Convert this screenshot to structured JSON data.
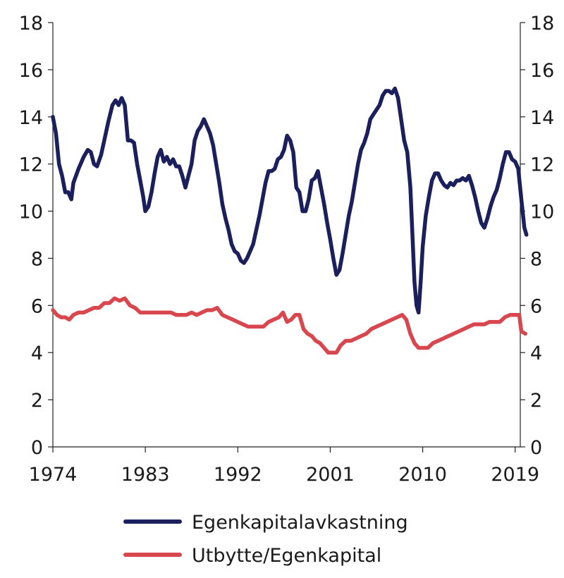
{
  "chart_data": {
    "type": "line",
    "x_ticks": [
      "1974",
      "1983",
      "1992",
      "2001",
      "2010",
      "2019"
    ],
    "y_ticks": [
      "0",
      "2",
      "4",
      "6",
      "8",
      "10",
      "12",
      "14",
      "16",
      "18"
    ],
    "xlim": [
      1974,
      2019.5
    ],
    "ylim": [
      0,
      18
    ],
    "grid": false,
    "dual_axis_labels": true,
    "legend_position": "bottom",
    "series": [
      {
        "name": "Egenkapitalavkastning",
        "color": "#1b1f5b",
        "points": [
          [
            1974.0,
            14.0
          ],
          [
            1974.3,
            13.3
          ],
          [
            1974.6,
            12.0
          ],
          [
            1974.9,
            11.5
          ],
          [
            1975.2,
            10.8
          ],
          [
            1975.5,
            10.8
          ],
          [
            1975.8,
            10.5
          ],
          [
            1976.0,
            11.2
          ],
          [
            1976.5,
            11.8
          ],
          [
            1977.0,
            12.3
          ],
          [
            1977.4,
            12.6
          ],
          [
            1977.7,
            12.5
          ],
          [
            1978.0,
            12.0
          ],
          [
            1978.3,
            11.9
          ],
          [
            1978.7,
            12.4
          ],
          [
            1979.0,
            13.0
          ],
          [
            1979.4,
            13.8
          ],
          [
            1979.8,
            14.5
          ],
          [
            1980.1,
            14.7
          ],
          [
            1980.4,
            14.5
          ],
          [
            1980.7,
            14.8
          ],
          [
            1981.0,
            14.5
          ],
          [
            1981.3,
            13.0
          ],
          [
            1981.6,
            13.0
          ],
          [
            1981.9,
            12.9
          ],
          [
            1982.2,
            12.0
          ],
          [
            1982.5,
            11.3
          ],
          [
            1982.8,
            10.6
          ],
          [
            1983.0,
            10.0
          ],
          [
            1983.3,
            10.2
          ],
          [
            1983.6,
            10.8
          ],
          [
            1983.9,
            11.6
          ],
          [
            1984.2,
            12.3
          ],
          [
            1984.5,
            12.6
          ],
          [
            1984.8,
            12.1
          ],
          [
            1985.1,
            12.3
          ],
          [
            1985.4,
            12.0
          ],
          [
            1985.7,
            12.2
          ],
          [
            1986.0,
            11.9
          ],
          [
            1986.3,
            11.9
          ],
          [
            1986.6,
            11.5
          ],
          [
            1986.9,
            11.0
          ],
          [
            1987.2,
            11.5
          ],
          [
            1987.5,
            12.0
          ],
          [
            1987.8,
            13.0
          ],
          [
            1988.1,
            13.4
          ],
          [
            1988.4,
            13.6
          ],
          [
            1988.7,
            13.9
          ],
          [
            1989.0,
            13.6
          ],
          [
            1989.3,
            13.3
          ],
          [
            1989.6,
            12.8
          ],
          [
            1989.9,
            12.0
          ],
          [
            1990.2,
            11.2
          ],
          [
            1990.5,
            10.3
          ],
          [
            1990.8,
            9.7
          ],
          [
            1991.1,
            9.2
          ],
          [
            1991.4,
            8.6
          ],
          [
            1991.7,
            8.3
          ],
          [
            1992.0,
            8.2
          ],
          [
            1992.3,
            7.9
          ],
          [
            1992.6,
            7.8
          ],
          [
            1992.9,
            8.0
          ],
          [
            1993.2,
            8.3
          ],
          [
            1993.5,
            8.6
          ],
          [
            1993.8,
            9.2
          ],
          [
            1994.1,
            9.8
          ],
          [
            1994.4,
            10.5
          ],
          [
            1994.7,
            11.2
          ],
          [
            1995.0,
            11.7
          ],
          [
            1995.3,
            11.7
          ],
          [
            1995.6,
            11.8
          ],
          [
            1995.9,
            12.2
          ],
          [
            1996.2,
            12.3
          ],
          [
            1996.5,
            12.6
          ],
          [
            1996.8,
            13.2
          ],
          [
            1997.1,
            13.0
          ],
          [
            1997.4,
            12.5
          ],
          [
            1997.7,
            11.0
          ],
          [
            1998.0,
            10.8
          ],
          [
            1998.3,
            10.0
          ],
          [
            1998.6,
            10.0
          ],
          [
            1998.9,
            10.5
          ],
          [
            1999.2,
            11.3
          ],
          [
            1999.5,
            11.4
          ],
          [
            1999.8,
            11.7
          ],
          [
            2000.1,
            11.0
          ],
          [
            2000.4,
            10.3
          ],
          [
            2000.7,
            9.5
          ],
          [
            2001.0,
            8.8
          ],
          [
            2001.3,
            8.0
          ],
          [
            2001.6,
            7.3
          ],
          [
            2001.9,
            7.5
          ],
          [
            2002.2,
            8.2
          ],
          [
            2002.5,
            9.0
          ],
          [
            2002.8,
            9.8
          ],
          [
            2003.1,
            10.4
          ],
          [
            2003.4,
            11.2
          ],
          [
            2003.7,
            12.0
          ],
          [
            2004.0,
            12.6
          ],
          [
            2004.3,
            12.9
          ],
          [
            2004.6,
            13.3
          ],
          [
            2004.9,
            13.9
          ],
          [
            2005.2,
            14.1
          ],
          [
            2005.5,
            14.3
          ],
          [
            2005.8,
            14.5
          ],
          [
            2006.1,
            14.9
          ],
          [
            2006.4,
            15.1
          ],
          [
            2006.7,
            15.1
          ],
          [
            2007.0,
            15.0
          ],
          [
            2007.3,
            15.2
          ],
          [
            2007.6,
            14.8
          ],
          [
            2007.9,
            13.9
          ],
          [
            2008.2,
            13.0
          ],
          [
            2008.5,
            12.5
          ],
          [
            2008.8,
            11.0
          ],
          [
            2009.0,
            9.0
          ],
          [
            2009.2,
            7.0
          ],
          [
            2009.4,
            6.0
          ],
          [
            2009.6,
            5.7
          ],
          [
            2009.8,
            7.0
          ],
          [
            2010.0,
            8.5
          ],
          [
            2010.3,
            9.8
          ],
          [
            2010.6,
            10.6
          ],
          [
            2010.9,
            11.3
          ],
          [
            2011.2,
            11.6
          ],
          [
            2011.5,
            11.6
          ],
          [
            2011.8,
            11.3
          ],
          [
            2012.1,
            11.1
          ],
          [
            2012.4,
            11.0
          ],
          [
            2012.7,
            11.2
          ],
          [
            2013.0,
            11.1
          ],
          [
            2013.3,
            11.3
          ],
          [
            2013.6,
            11.3
          ],
          [
            2013.9,
            11.4
          ],
          [
            2014.2,
            11.3
          ],
          [
            2014.5,
            11.5
          ],
          [
            2014.8,
            11.1
          ],
          [
            2015.1,
            10.6
          ],
          [
            2015.4,
            10.0
          ],
          [
            2015.7,
            9.5
          ],
          [
            2016.0,
            9.3
          ],
          [
            2016.3,
            9.7
          ],
          [
            2016.6,
            10.2
          ],
          [
            2016.9,
            10.6
          ],
          [
            2017.2,
            10.9
          ],
          [
            2017.5,
            11.4
          ],
          [
            2017.8,
            12.0
          ],
          [
            2018.1,
            12.5
          ],
          [
            2018.4,
            12.5
          ],
          [
            2018.7,
            12.2
          ],
          [
            2019.0,
            12.1
          ],
          [
            2019.3,
            11.8
          ],
          [
            2019.6,
            10.5
          ],
          [
            2019.9,
            9.3
          ],
          [
            2020.1,
            9.0
          ]
        ]
      },
      {
        "name": "Utbytte/Egenkapital",
        "color": "#d8474e",
        "points": [
          [
            1974.0,
            5.8
          ],
          [
            1974.4,
            5.6
          ],
          [
            1974.8,
            5.5
          ],
          [
            1975.2,
            5.5
          ],
          [
            1975.6,
            5.4
          ],
          [
            1976.0,
            5.6
          ],
          [
            1976.5,
            5.7
          ],
          [
            1977.0,
            5.7
          ],
          [
            1977.5,
            5.8
          ],
          [
            1978.0,
            5.9
          ],
          [
            1978.5,
            5.9
          ],
          [
            1979.0,
            6.1
          ],
          [
            1979.5,
            6.1
          ],
          [
            1980.0,
            6.3
          ],
          [
            1980.5,
            6.2
          ],
          [
            1981.0,
            6.3
          ],
          [
            1981.5,
            6.0
          ],
          [
            1982.0,
            5.9
          ],
          [
            1982.5,
            5.7
          ],
          [
            1983.0,
            5.7
          ],
          [
            1983.5,
            5.7
          ],
          [
            1984.0,
            5.7
          ],
          [
            1984.5,
            5.7
          ],
          [
            1985.0,
            5.7
          ],
          [
            1985.5,
            5.7
          ],
          [
            1986.0,
            5.6
          ],
          [
            1986.5,
            5.6
          ],
          [
            1987.0,
            5.6
          ],
          [
            1987.5,
            5.7
          ],
          [
            1988.0,
            5.6
          ],
          [
            1988.5,
            5.7
          ],
          [
            1989.0,
            5.8
          ],
          [
            1989.5,
            5.8
          ],
          [
            1990.0,
            5.9
          ],
          [
            1990.5,
            5.6
          ],
          [
            1991.0,
            5.5
          ],
          [
            1991.5,
            5.4
          ],
          [
            1992.0,
            5.3
          ],
          [
            1992.5,
            5.2
          ],
          [
            1993.0,
            5.1
          ],
          [
            1993.5,
            5.1
          ],
          [
            1994.0,
            5.1
          ],
          [
            1994.5,
            5.1
          ],
          [
            1995.0,
            5.3
          ],
          [
            1995.5,
            5.4
          ],
          [
            1996.0,
            5.5
          ],
          [
            1996.4,
            5.7
          ],
          [
            1996.8,
            5.3
          ],
          [
            1997.2,
            5.4
          ],
          [
            1997.6,
            5.6
          ],
          [
            1998.0,
            5.6
          ],
          [
            1998.4,
            5.0
          ],
          [
            1998.8,
            4.8
          ],
          [
            1999.2,
            4.7
          ],
          [
            1999.6,
            4.5
          ],
          [
            2000.0,
            4.4
          ],
          [
            2000.4,
            4.2
          ],
          [
            2000.8,
            4.0
          ],
          [
            2001.2,
            4.0
          ],
          [
            2001.6,
            4.0
          ],
          [
            2002.0,
            4.3
          ],
          [
            2002.5,
            4.5
          ],
          [
            2003.0,
            4.5
          ],
          [
            2003.5,
            4.6
          ],
          [
            2004.0,
            4.7
          ],
          [
            2004.5,
            4.8
          ],
          [
            2005.0,
            5.0
          ],
          [
            2005.5,
            5.1
          ],
          [
            2006.0,
            5.2
          ],
          [
            2006.5,
            5.3
          ],
          [
            2007.0,
            5.4
          ],
          [
            2007.5,
            5.5
          ],
          [
            2008.0,
            5.6
          ],
          [
            2008.4,
            5.4
          ],
          [
            2008.8,
            4.8
          ],
          [
            2009.2,
            4.4
          ],
          [
            2009.6,
            4.2
          ],
          [
            2010.0,
            4.2
          ],
          [
            2010.5,
            4.2
          ],
          [
            2011.0,
            4.4
          ],
          [
            2011.5,
            4.5
          ],
          [
            2012.0,
            4.6
          ],
          [
            2012.5,
            4.7
          ],
          [
            2013.0,
            4.8
          ],
          [
            2013.5,
            4.9
          ],
          [
            2014.0,
            5.0
          ],
          [
            2014.5,
            5.1
          ],
          [
            2015.0,
            5.2
          ],
          [
            2015.5,
            5.2
          ],
          [
            2016.0,
            5.2
          ],
          [
            2016.5,
            5.3
          ],
          [
            2017.0,
            5.3
          ],
          [
            2017.5,
            5.3
          ],
          [
            2018.0,
            5.5
          ],
          [
            2018.5,
            5.6
          ],
          [
            2019.0,
            5.6
          ],
          [
            2019.4,
            5.6
          ],
          [
            2019.6,
            4.9
          ],
          [
            2020.0,
            4.8
          ]
        ]
      }
    ]
  }
}
